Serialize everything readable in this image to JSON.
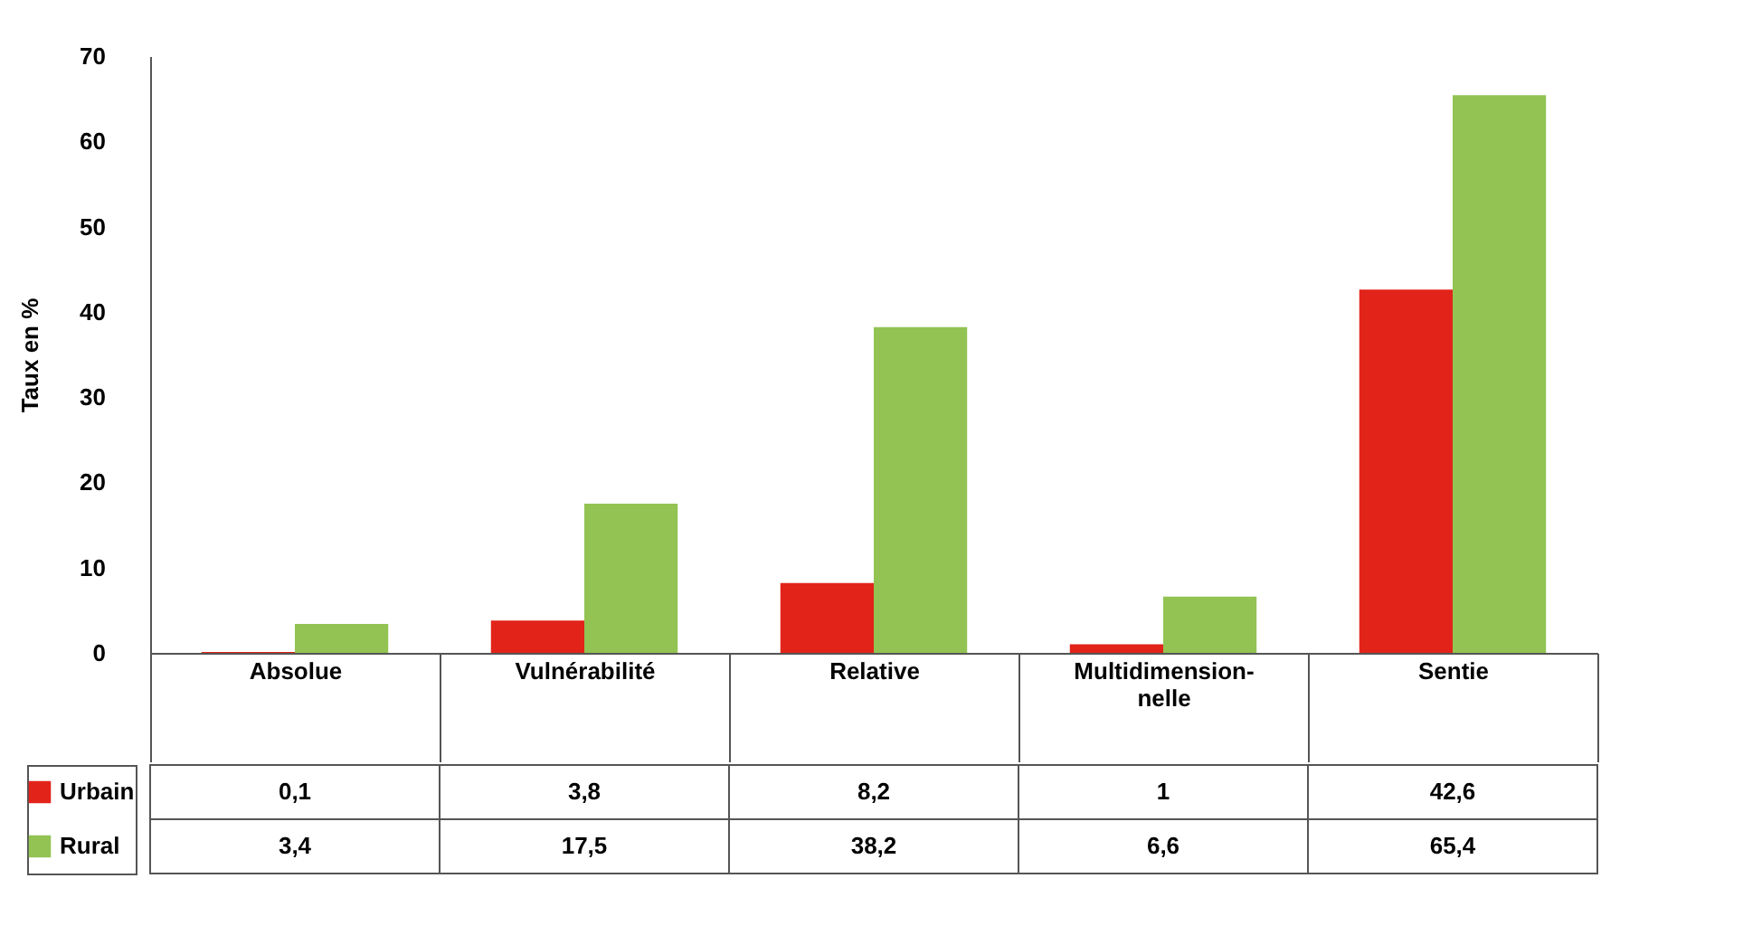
{
  "chart_data": {
    "type": "bar",
    "ylabel": "Taux en %",
    "categories": [
      "Absolue",
      "Vulnérabilité",
      "Relative",
      "Multidimension-nelle",
      "Sentie"
    ],
    "series": [
      {
        "name": "Urbain",
        "color": "#e2231a",
        "values": [
          0.1,
          3.8,
          8.2,
          1,
          42.6
        ],
        "value_labels": [
          "0,1",
          "3,8",
          "8,2",
          "1",
          "42,6"
        ]
      },
      {
        "name": "Rural",
        "color": "#92c353",
        "values": [
          3.4,
          17.5,
          38.2,
          6.6,
          65.4
        ],
        "value_labels": [
          "3,4",
          "17,5",
          "38,2",
          "6,6",
          "65,4"
        ]
      }
    ],
    "ylim": [
      0,
      70
    ],
    "yticks": [
      0,
      10,
      20,
      30,
      40,
      50,
      60,
      70
    ],
    "grid": false,
    "legend": "left"
  }
}
